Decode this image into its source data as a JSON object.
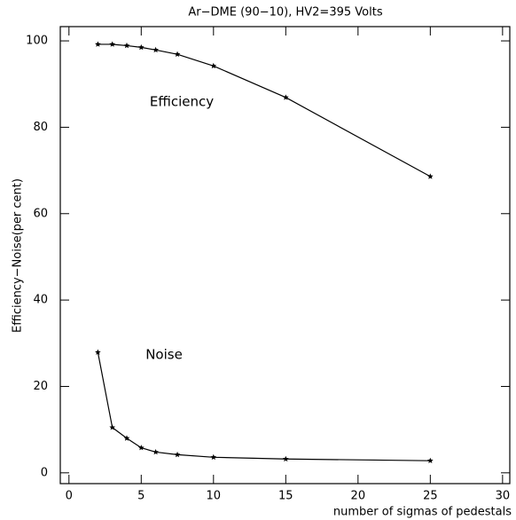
{
  "chart_data": {
    "type": "line",
    "title": "Ar−DME (90−10), HV2=395 Volts",
    "x_label": "number of sigmas of pedestals",
    "y_label": "Efficiency−Noise(per cent)",
    "x": [
      2,
      3,
      4,
      5,
      6,
      7.5,
      10,
      15,
      25
    ],
    "series": [
      {
        "name": "Efficiency",
        "color": "#000000",
        "values": [
          99.2,
          99.2,
          98.9,
          98.5,
          97.9,
          96.9,
          94.2,
          86.9,
          68.6
        ]
      },
      {
        "name": "Noise",
        "color": "#000000",
        "values": [
          27.9,
          10.5,
          8,
          5.8,
          4.8,
          4.2,
          3.6,
          3.2,
          2.8
        ]
      }
    ],
    "xlim": [
      -0.6,
      30.5
    ],
    "xticks": [
      0,
      5,
      10,
      15,
      20,
      25,
      30
    ],
    "ylim": [
      -2.5,
      103.3
    ],
    "yticks": [
      0,
      20,
      40,
      60,
      80,
      100
    ],
    "grid": false
  }
}
